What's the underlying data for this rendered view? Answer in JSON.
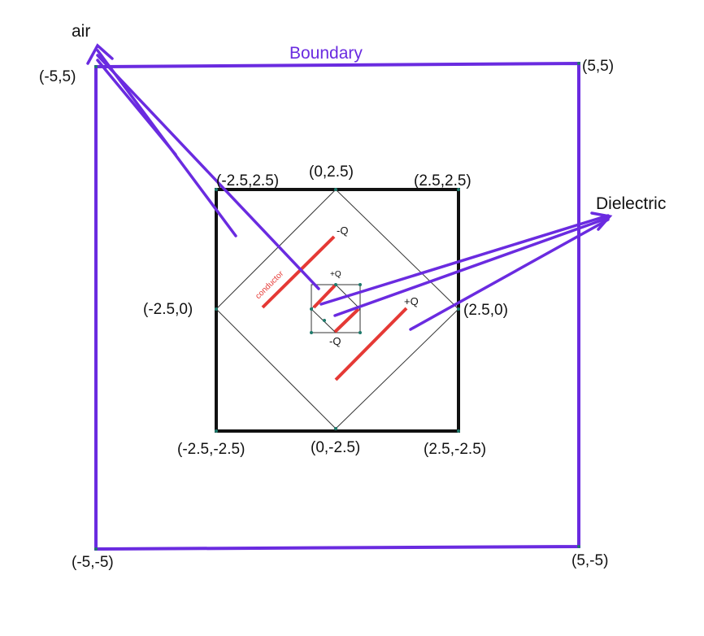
{
  "title_labels": {
    "boundary": "Boundary",
    "air": "air",
    "dielectric": "Dielectric"
  },
  "outer_corners": {
    "top_left": "(-5,5)",
    "top_right": "(5,5)",
    "bottom_left": "(-5,-5)",
    "bottom_right": "(5,-5)"
  },
  "inner_box": {
    "top_left": "(-2.5,2.5)",
    "top_mid": "(0,2.5)",
    "top_right": "(2.5,2.5)",
    "left_mid": "(-2.5,0)",
    "right_mid": "(2.5,0)",
    "bottom_left": "(-2.5,-2.5)",
    "bottom_mid": "(0,-2.5)",
    "bottom_right": "(2.5,-2.5)"
  },
  "charges": {
    "outer_top": "-Q",
    "outer_right": "+Q",
    "inner_top": "+Q",
    "inner_bottom": "-Q"
  },
  "conductor_label": "conductor",
  "colors": {
    "boundary": "#6a2be0",
    "arrow": "#6a2be0",
    "conductor": "#e53935",
    "box": "#111111",
    "node": "#1e7a6b"
  }
}
